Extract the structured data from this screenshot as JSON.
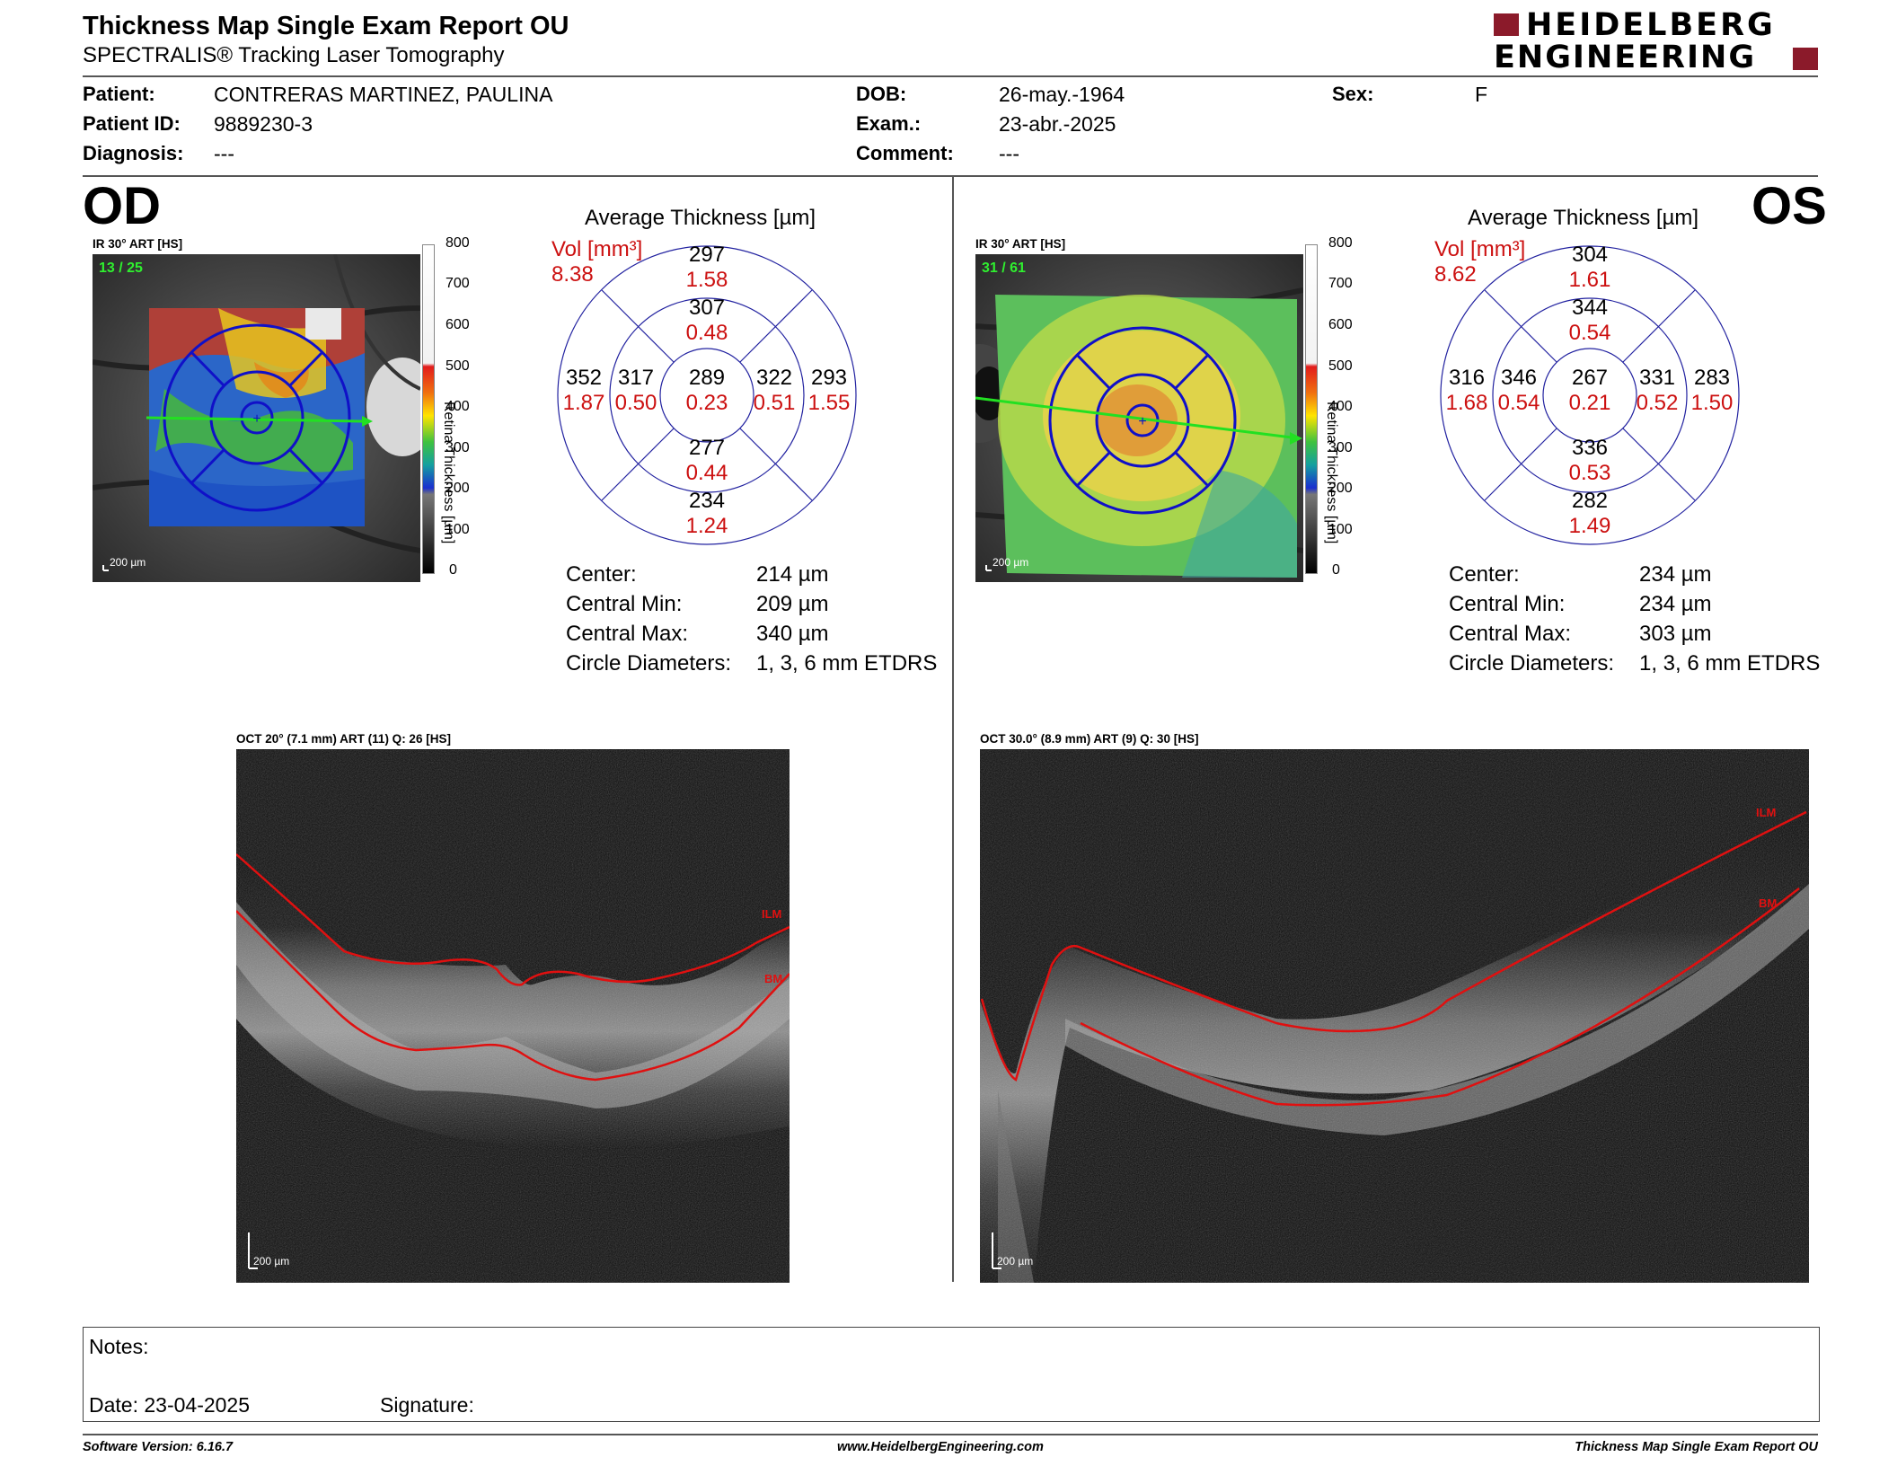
{
  "header": {
    "title": "Thickness Map Single Exam Report OU",
    "subtitle": "SPECTRALIS® Tracking Laser Tomography",
    "logo_line1": "HEIDELBERG",
    "logo_line2": "ENGINEERING",
    "brand_color": "#8b1a2a"
  },
  "patient": {
    "patient_label": "Patient:",
    "patient_value": "CONTRERAS MARTINEZ, PAULINA",
    "id_label": "Patient ID:",
    "id_value": "9889230-3",
    "diag_label": "Diagnosis:",
    "diag_value": "---",
    "dob_label": "DOB:",
    "dob_value": "26-may.-1964",
    "exam_label": "Exam.:",
    "exam_value": "23-abr.-2025",
    "comment_label": "Comment:",
    "comment_value": "---",
    "sex_label": "Sex:",
    "sex_value": "F"
  },
  "scale": {
    "title": "Retina Thickness [µm]",
    "ticks": [
      "800",
      "700",
      "600",
      "500",
      "400",
      "300",
      "200",
      "100",
      "0"
    ]
  },
  "od": {
    "eye": "OD",
    "ir_label": "IR 30° ART [HS]",
    "ir_frames": "13 / 25",
    "ir_scalebar": "200 µm",
    "avg_title": "Average Thickness [µm]",
    "vol_label": "Vol [mm³]",
    "vol_total": "8.38",
    "sectors": {
      "outer_sup": {
        "t": "297",
        "v": "1.58"
      },
      "inner_sup": {
        "t": "307",
        "v": "0.48"
      },
      "outer_temp": {
        "t": "352",
        "v": "1.87"
      },
      "inner_temp": {
        "t": "317",
        "v": "0.50"
      },
      "center": {
        "t": "289",
        "v": "0.23"
      },
      "inner_nas": {
        "t": "322",
        "v": "0.51"
      },
      "outer_nas": {
        "t": "293",
        "v": "1.55"
      },
      "inner_inf": {
        "t": "277",
        "v": "0.44"
      },
      "outer_inf": {
        "t": "234",
        "v": "1.24"
      }
    },
    "stats": [
      {
        "label": "Center:",
        "value": "214 µm"
      },
      {
        "label": "Central Min:",
        "value": "209 µm"
      },
      {
        "label": "Central Max:",
        "value": "340 µm"
      },
      {
        "label": "Circle Diameters:",
        "value": "1, 3, 6 mm ETDRS"
      }
    ],
    "oct_label": "OCT 20° (7.1 mm) ART (11) Q: 26 [HS]",
    "oct_scalebar": "200 µm",
    "ilm": "ILM",
    "bm": "BM"
  },
  "os": {
    "eye": "OS",
    "ir_label": "IR 30° ART [HS]",
    "ir_frames": "31 / 61",
    "ir_scalebar": "200 µm",
    "avg_title": "Average Thickness [µm]",
    "vol_label": "Vol [mm³]",
    "vol_total": "8.62",
    "sectors": {
      "outer_sup": {
        "t": "304",
        "v": "1.61"
      },
      "inner_sup": {
        "t": "344",
        "v": "0.54"
      },
      "outer_temp": {
        "t": "316",
        "v": "1.68"
      },
      "inner_temp": {
        "t": "346",
        "v": "0.54"
      },
      "center": {
        "t": "267",
        "v": "0.21"
      },
      "inner_nas": {
        "t": "331",
        "v": "0.52"
      },
      "outer_nas": {
        "t": "283",
        "v": "1.50"
      },
      "inner_inf": {
        "t": "336",
        "v": "0.53"
      },
      "outer_inf": {
        "t": "282",
        "v": "1.49"
      }
    },
    "stats": [
      {
        "label": "Center:",
        "value": "234 µm"
      },
      {
        "label": "Central Min:",
        "value": "234 µm"
      },
      {
        "label": "Central Max:",
        "value": "303 µm"
      },
      {
        "label": "Circle Diameters:",
        "value": "1, 3, 6 mm ETDRS"
      }
    ],
    "oct_label": "OCT 30.0° (8.9 mm) ART (9) Q: 30 [HS]",
    "oct_scalebar": "200 µm",
    "ilm": "ILM",
    "bm": "BM"
  },
  "notes": {
    "notes_label": "Notes:",
    "date_label": "Date: 23-04-2025",
    "signature_label": "Signature:"
  },
  "footer": {
    "software": "Software Version: 6.16.7",
    "website": "www.HeidelbergEngineering.com",
    "report": "Thickness Map Single Exam Report OU"
  }
}
